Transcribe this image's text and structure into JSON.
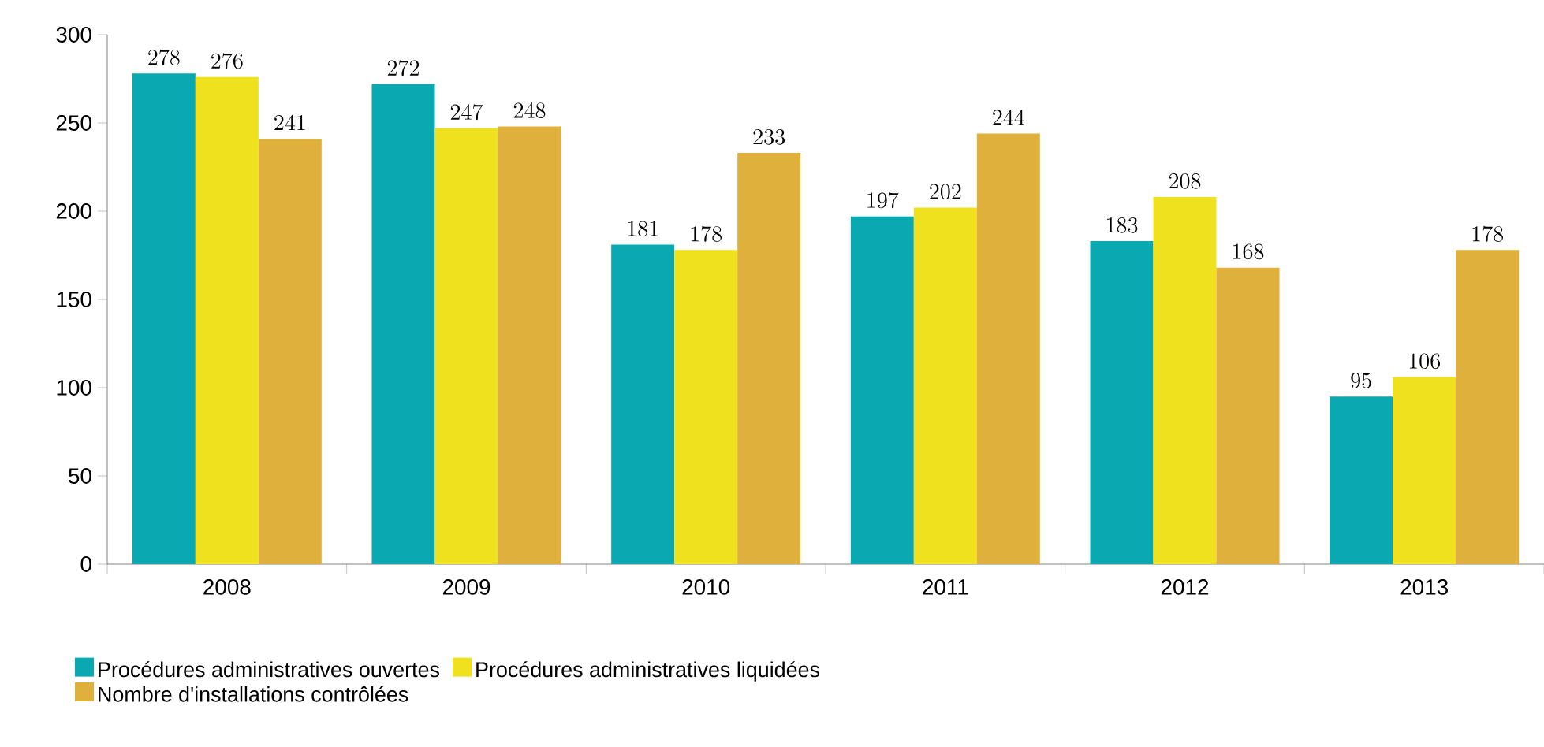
{
  "chart_data": {
    "type": "bar",
    "categories": [
      "2008",
      "2009",
      "2010",
      "2011",
      "2012",
      "2013"
    ],
    "series": [
      {
        "name": "Procédures administratives ouvertes",
        "color": "#0aa8b1",
        "values": [
          278,
          272,
          181,
          197,
          183,
          95
        ]
      },
      {
        "name": "Procédures administratives liquidées",
        "color": "#f0e11e",
        "values": [
          276,
          247,
          178,
          202,
          208,
          106
        ]
      },
      {
        "name": "Nombre d'installations contrôlées",
        "color": "#e0b03c",
        "values": [
          241,
          248,
          233,
          244,
          168,
          178
        ]
      }
    ],
    "ylim": [
      0,
      300
    ],
    "yticks": [
      0,
      50,
      100,
      150,
      200,
      250,
      300
    ],
    "data_labels": true,
    "legend": "bottom left"
  }
}
